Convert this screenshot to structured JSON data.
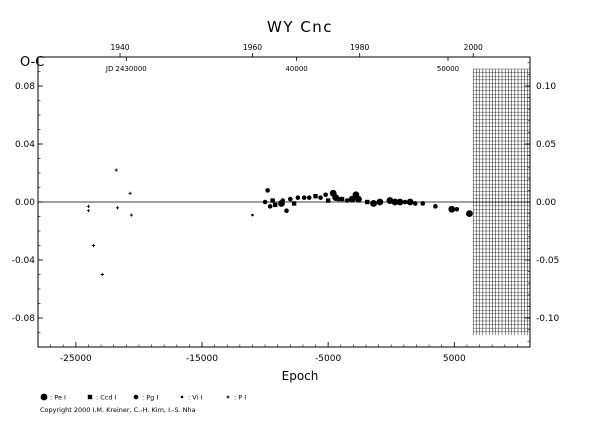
{
  "chart_data": {
    "type": "scatter",
    "title": "WY  Cnc",
    "ylabel": "O-C",
    "xlabel": "Epoch",
    "xlim": [
      -28000,
      11000
    ],
    "ylim": [
      -0.1,
      0.1
    ],
    "right_ylim": [
      -0.125,
      0.125
    ],
    "x_ticks": [
      -25000,
      -15000,
      -5000,
      5000
    ],
    "y_ticks": [
      -0.08,
      -0.04,
      0.0,
      0.04,
      0.08
    ],
    "right_y_ticks": [
      -0.1,
      -0.05,
      0.0,
      0.05,
      0.1
    ],
    "top_year_ticks": [
      {
        "label": "1940",
        "epoch": -21500
      },
      {
        "label": "1960",
        "epoch": -11000
      },
      {
        "label": "1980",
        "epoch": -2500
      },
      {
        "label": "2000",
        "epoch": 6500
      }
    ],
    "top_jd_ticks": [
      {
        "label": "JD 2430000",
        "epoch": -21000
      },
      {
        "label": "40000",
        "epoch": -7500
      },
      {
        "label": "50000",
        "epoch": 4500
      }
    ],
    "zero_line": 0.0,
    "future_hatch_from_epoch": 6500,
    "points": [
      {
        "x": -24000,
        "y": -0.003,
        "s": "plus"
      },
      {
        "x": -24000,
        "y": -0.006,
        "s": "plus"
      },
      {
        "x": -23600,
        "y": -0.03,
        "s": "plus"
      },
      {
        "x": -22900,
        "y": -0.05,
        "s": "plus"
      },
      {
        "x": -21800,
        "y": 0.022,
        "s": "plus"
      },
      {
        "x": -21700,
        "y": -0.004,
        "s": "plus"
      },
      {
        "x": -20700,
        "y": 0.006,
        "s": "plus"
      },
      {
        "x": -20600,
        "y": -0.009,
        "s": "plus"
      },
      {
        "x": -11000,
        "y": -0.009,
        "s": "dot"
      },
      {
        "x": -10000,
        "y": 0.0,
        "s": "med"
      },
      {
        "x": -9800,
        "y": 0.008,
        "s": "med"
      },
      {
        "x": -9600,
        "y": -0.003,
        "s": "med"
      },
      {
        "x": -9400,
        "y": 0.001,
        "s": "sq"
      },
      {
        "x": -9200,
        "y": -0.002,
        "s": "sq"
      },
      {
        "x": -8700,
        "y": -0.001,
        "s": "big"
      },
      {
        "x": -8600,
        "y": 0.001,
        "s": "med"
      },
      {
        "x": -8300,
        "y": -0.006,
        "s": "med"
      },
      {
        "x": -8000,
        "y": 0.002,
        "s": "med"
      },
      {
        "x": -7700,
        "y": -0.001,
        "s": "sq"
      },
      {
        "x": -7400,
        "y": 0.003,
        "s": "med"
      },
      {
        "x": -6900,
        "y": 0.003,
        "s": "med"
      },
      {
        "x": -6500,
        "y": 0.003,
        "s": "med"
      },
      {
        "x": -6000,
        "y": 0.004,
        "s": "sq"
      },
      {
        "x": -5600,
        "y": 0.003,
        "s": "med"
      },
      {
        "x": -5200,
        "y": 0.005,
        "s": "med"
      },
      {
        "x": -5000,
        "y": 0.001,
        "s": "sq"
      },
      {
        "x": -4600,
        "y": 0.006,
        "s": "big"
      },
      {
        "x": -4400,
        "y": 0.003,
        "s": "big"
      },
      {
        "x": -4200,
        "y": 0.002,
        "s": "med"
      },
      {
        "x": -3900,
        "y": 0.002,
        "s": "sq"
      },
      {
        "x": -3500,
        "y": 0.001,
        "s": "med"
      },
      {
        "x": -3100,
        "y": 0.002,
        "s": "big"
      },
      {
        "x": -2800,
        "y": 0.005,
        "s": "big"
      },
      {
        "x": -2600,
        "y": 0.002,
        "s": "big"
      },
      {
        "x": -1900,
        "y": 0.0,
        "s": "sq"
      },
      {
        "x": -1400,
        "y": -0.001,
        "s": "big"
      },
      {
        "x": -900,
        "y": 0.0,
        "s": "big"
      },
      {
        "x": -100,
        "y": 0.001,
        "s": "big"
      },
      {
        "x": 300,
        "y": 0.0,
        "s": "big"
      },
      {
        "x": 700,
        "y": 0.0,
        "s": "big"
      },
      {
        "x": 1100,
        "y": 0.0,
        "s": "med"
      },
      {
        "x": 1500,
        "y": 0.0,
        "s": "big"
      },
      {
        "x": 1900,
        "y": -0.001,
        "s": "med"
      },
      {
        "x": 2500,
        "y": -0.001,
        "s": "med"
      },
      {
        "x": 3500,
        "y": -0.003,
        "s": "med"
      },
      {
        "x": 4800,
        "y": -0.005,
        "s": "big"
      },
      {
        "x": 5200,
        "y": -0.005,
        "s": "med"
      },
      {
        "x": 6200,
        "y": -0.008,
        "s": "big"
      }
    ],
    "legend": [
      {
        "label": ": Pe I",
        "marker": "big"
      },
      {
        "label": ": Ccd I",
        "marker": "sq"
      },
      {
        "label": ": Pg I",
        "marker": "med"
      },
      {
        "label": ": Vi I",
        "marker": "dot"
      },
      {
        "label": ": P I",
        "marker": "plus"
      }
    ]
  },
  "copyright": "Copyright 2000 I.M. Kreiner, C.-H. Kim, I.-S. Nha"
}
